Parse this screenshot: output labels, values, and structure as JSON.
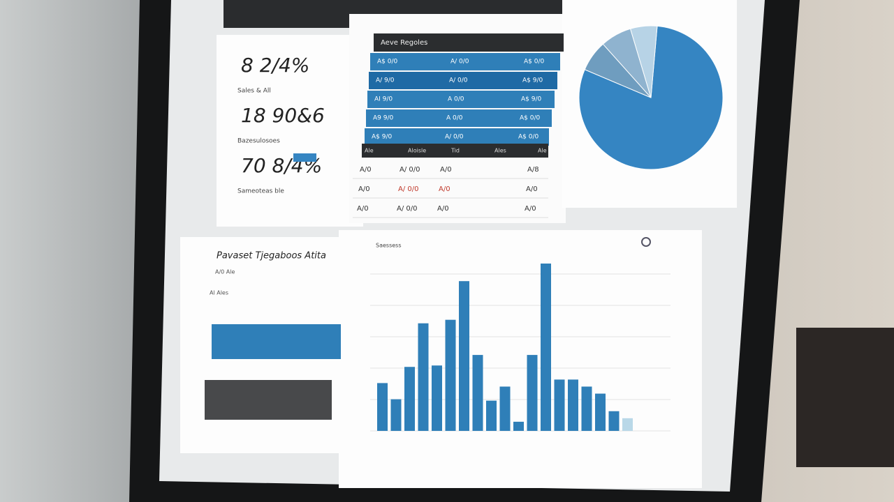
{
  "kpis": [
    {
      "value": "8 2/4%",
      "label": "Sales & All"
    },
    {
      "value": "18 90&6",
      "label": "Bazesulosoes"
    },
    {
      "value": "70 8/4%",
      "label": "Sameoteas ble"
    }
  ],
  "table": {
    "title": "Aeve Regoles",
    "blue_rows": [
      [
        "A$ 0/0",
        "A/ 0/0",
        "A$ 0/0"
      ],
      [
        "A/ 9/0",
        "A/ 0/0",
        "A$ 9/0"
      ],
      [
        "AI 9/0",
        "A 0/0",
        "A$ 9/0"
      ],
      [
        "A9 9/0",
        "A 0/0",
        "A$ 0/0"
      ],
      [
        "A$ 9/0",
        "A/ 0/0",
        "A$ 0/0"
      ]
    ],
    "header": [
      "Ale",
      "Aloisle",
      "Tid",
      "Ales",
      "Ale"
    ],
    "rows": [
      [
        "A/0",
        "A/ 0/0",
        "A/0",
        "A/8"
      ],
      [
        "A/0",
        "A/ 0/0",
        "A/0",
        "A/0"
      ],
      [
        "A/0",
        "A/ 0/0",
        "A/0",
        "A/0"
      ]
    ]
  },
  "side_panel": {
    "title": "Pavaset Tjegaboos Atita",
    "subtitle": "A/0 Ale",
    "label": "Al Ales"
  },
  "bar_chart": {
    "type": "bar",
    "title": "Saessess",
    "values": [
      68,
      45,
      91,
      153,
      93,
      158,
      213,
      108,
      43,
      63,
      13,
      108,
      238,
      73,
      73,
      63,
      53,
      28,
      18
    ],
    "color": "#2f7fb8",
    "last_color": "#b9d8e8"
  },
  "pie": {
    "type": "pie",
    "values": [
      80,
      7,
      7,
      6
    ],
    "colors": [
      "#3585c2",
      "#6f9dbf",
      "#8fb3cf",
      "#b7d3e6"
    ]
  }
}
